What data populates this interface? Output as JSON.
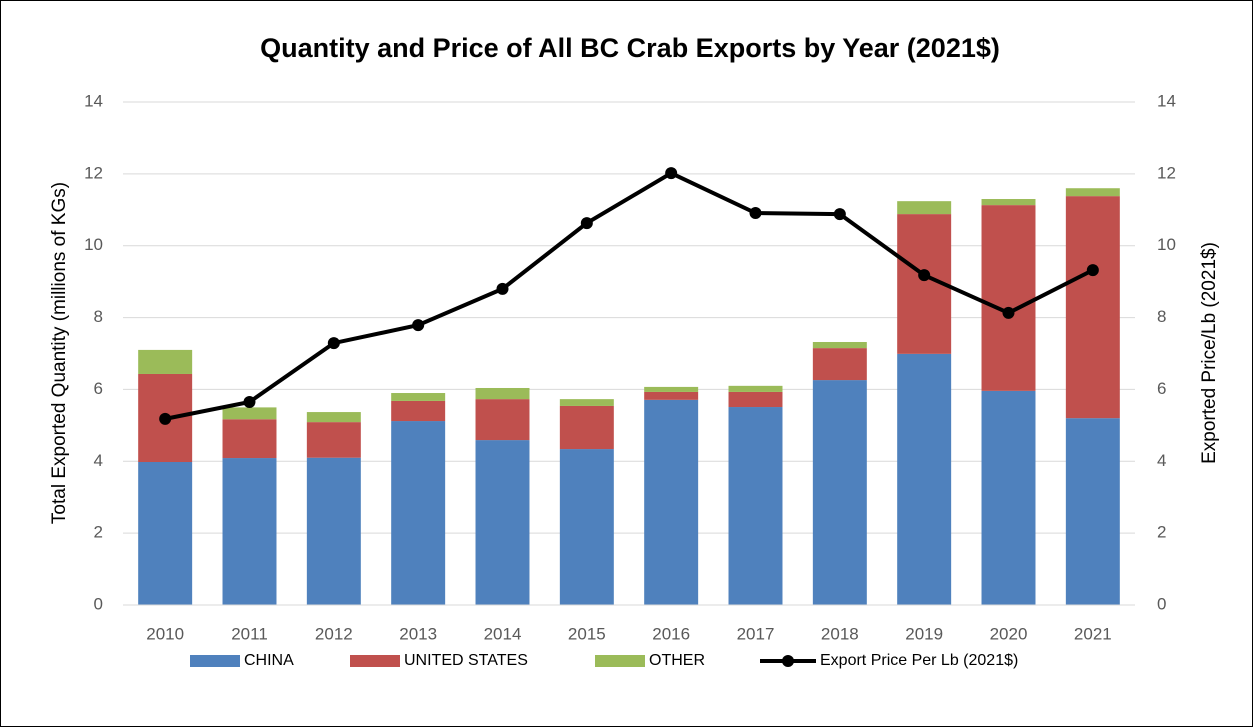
{
  "chart_data": {
    "type": "bar",
    "stacked": true,
    "title": "Quantity and Price of All BC Crab Exports by Year (2021$)",
    "ylabel": "Total Exported Quantity (millions of KGs)",
    "y2label": "Exported Price/Lb (2021$)",
    "categories": [
      "2010",
      "2011",
      "2012",
      "2013",
      "2014",
      "2015",
      "2016",
      "2017",
      "2018",
      "2019",
      "2020",
      "2021"
    ],
    "series": [
      {
        "name": "CHINA",
        "color": "#4f81bd",
        "values": [
          3.98,
          4.09,
          4.1,
          5.12,
          4.59,
          4.34,
          5.71,
          5.51,
          6.26,
          6.99,
          5.96,
          5.2
        ]
      },
      {
        "name": "UNITED STATES",
        "color": "#c0504d",
        "values": [
          2.45,
          1.08,
          0.99,
          0.56,
          1.14,
          1.2,
          0.22,
          0.42,
          0.89,
          3.89,
          5.17,
          6.18
        ]
      },
      {
        "name": "OTHER",
        "color": "#9bbb59",
        "values": [
          0.67,
          0.33,
          0.28,
          0.22,
          0.31,
          0.19,
          0.14,
          0.17,
          0.17,
          0.36,
          0.17,
          0.22
        ]
      },
      {
        "name": "Export Price Per Lb (2021$)",
        "color": "#000000",
        "type": "line",
        "axis": "y2",
        "values": [
          5.18,
          5.65,
          7.29,
          7.79,
          8.8,
          10.63,
          12.02,
          10.91,
          10.88,
          9.18,
          8.13,
          9.32
        ]
      }
    ],
    "ylim": [
      0,
      14
    ],
    "yticks": [
      0,
      2,
      4,
      6,
      8,
      10,
      12,
      14
    ],
    "y2lim": [
      0,
      14
    ],
    "y2ticks": [
      0,
      2,
      4,
      6,
      8,
      10,
      12,
      14
    ],
    "grid": true,
    "legend": "bottom"
  }
}
